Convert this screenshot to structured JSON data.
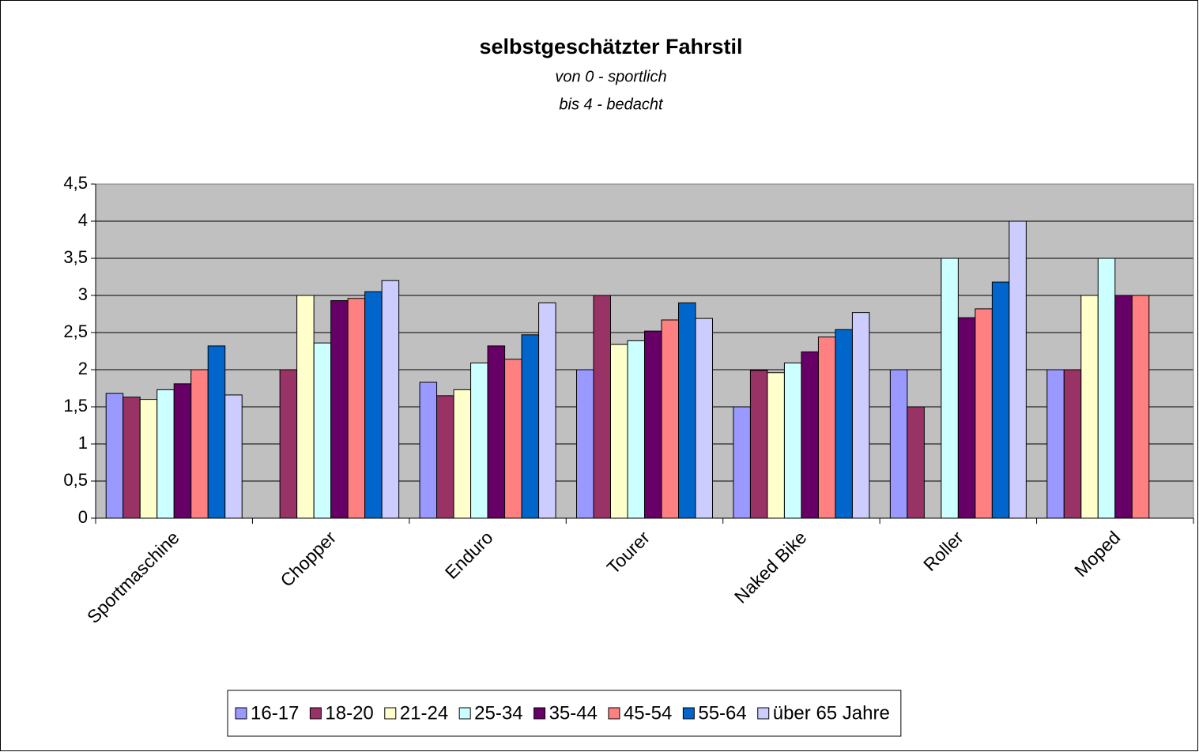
{
  "chart_data": {
    "type": "bar",
    "title": "selbstgeschätzter Fahrstil",
    "subtitle": [
      "von 0 - sportlich",
      "bis 4 - bedacht"
    ],
    "categories": [
      "Sportmaschine",
      "Chopper",
      "Enduro",
      "Tourer",
      "Naked Bike",
      "Roller",
      "Moped"
    ],
    "series": [
      {
        "name": "16-17",
        "color": "#9999ff",
        "values": [
          1.68,
          null,
          1.83,
          2.0,
          1.5,
          2.0,
          2.0
        ]
      },
      {
        "name": "18-20",
        "color": "#993366",
        "values": [
          1.63,
          2.0,
          1.65,
          3.0,
          1.99,
          1.5,
          2.0
        ]
      },
      {
        "name": "21-24",
        "color": "#ffffcc",
        "values": [
          1.6,
          3.0,
          1.73,
          2.34,
          1.96,
          null,
          3.0
        ]
      },
      {
        "name": "25-34",
        "color": "#ccffff",
        "values": [
          1.73,
          2.36,
          2.09,
          2.39,
          2.09,
          3.5,
          3.5
        ]
      },
      {
        "name": "35-44",
        "color": "#660066",
        "values": [
          1.81,
          2.93,
          2.32,
          2.52,
          2.24,
          2.7,
          3.0
        ]
      },
      {
        "name": "45-54",
        "color": "#ff8080",
        "values": [
          2.0,
          2.96,
          2.14,
          2.67,
          2.44,
          2.82,
          3.0
        ]
      },
      {
        "name": "55-64",
        "color": "#0066cc",
        "values": [
          2.32,
          3.05,
          2.47,
          2.9,
          2.54,
          3.18,
          null
        ]
      },
      {
        "name": "über 65 Jahre",
        "color": "#ccccff",
        "values": [
          1.66,
          3.2,
          2.9,
          2.69,
          2.77,
          4.0,
          null
        ]
      }
    ],
    "ylim": [
      0,
      4.5
    ],
    "yticks": [
      0,
      {
        "value": 0.5,
        "label": "0,5"
      },
      1,
      {
        "value": 1.5,
        "label": "1,5"
      },
      2,
      {
        "value": 2.5,
        "label": "2,5"
      },
      3,
      {
        "value": 3.5,
        "label": "3,5"
      },
      4,
      {
        "value": 4.5,
        "label": "4,5"
      }
    ],
    "grid": true,
    "legend": "bottom"
  }
}
